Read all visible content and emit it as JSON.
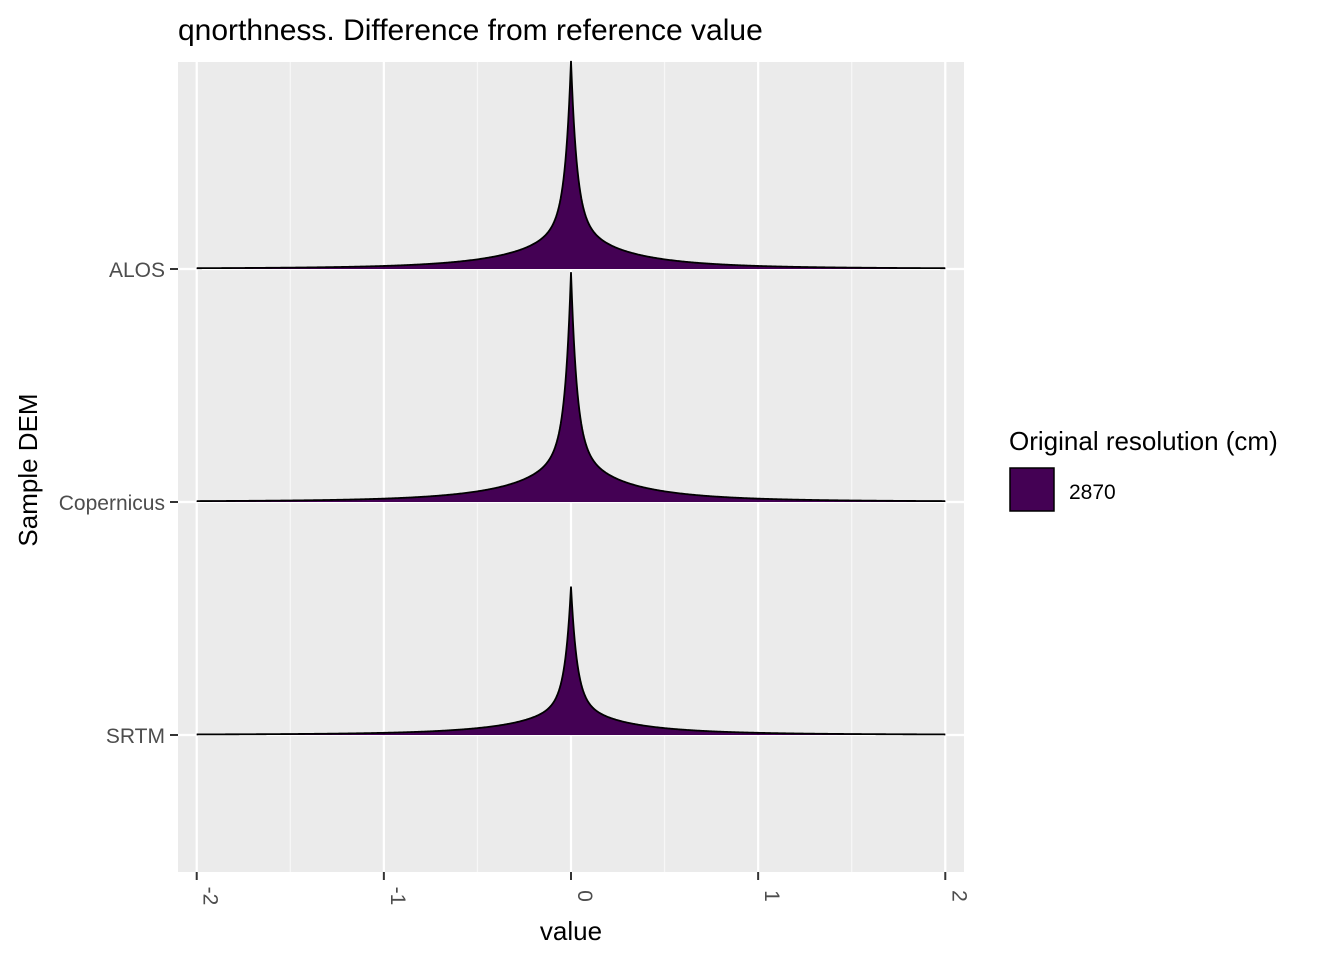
{
  "chart_data": {
    "type": "ridgeline",
    "title": "qnorthness. Difference from reference value",
    "xlabel": "value",
    "ylabel": "Sample DEM",
    "xlim": [
      -2.1,
      2.1
    ],
    "x_ticks": [
      -2,
      -1,
      0,
      1,
      2
    ],
    "grid": true,
    "legend": {
      "title": "Original resolution (cm)",
      "position": "right",
      "entries": [
        {
          "label": "2870",
          "color": "#440154"
        }
      ]
    },
    "series": [
      {
        "name": "ALOS",
        "x_range": [
          -2,
          2
        ],
        "peak_x": 0.0,
        "relative_peak_height": 1.15
      },
      {
        "name": "Copernicus",
        "x_range": [
          -2,
          2
        ],
        "peak_x": 0.0,
        "relative_peak_height": 1.27
      },
      {
        "name": "SRTM",
        "x_range": [
          -2,
          2
        ],
        "peak_x": 0.0,
        "relative_peak_height": 0.82
      }
    ],
    "fill_color": "#440154",
    "panel_color": "#ebebeb",
    "grid_color": "#ffffff"
  }
}
